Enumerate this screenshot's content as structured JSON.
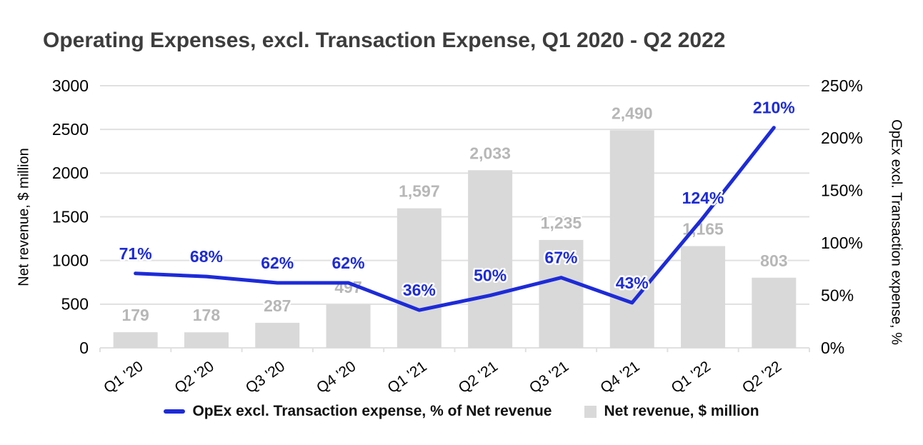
{
  "title": "Operating Expenses, excl. Transaction Expense, Q1 2020 - Q2 2022",
  "colors": {
    "bar": "#d9d9d9",
    "bar_label": "#b7b7b7",
    "line": "#1d2bd8",
    "grid": "#e0e0e0",
    "title": "#3d3d3d",
    "axis_text": "#000000"
  },
  "left_axis": {
    "title": "Net revenue, $ million",
    "ticks": [
      0,
      500,
      1000,
      1500,
      2000,
      2500,
      3000
    ]
  },
  "right_axis": {
    "title": "OpEx excl. Transaction expense, %",
    "ticks": [
      0,
      50,
      100,
      150,
      200,
      250
    ]
  },
  "legend": [
    {
      "type": "line",
      "label": "OpEx excl. Transaction expense, % of Net revenue"
    },
    {
      "type": "box",
      "label": "Net revenue, $ million"
    }
  ],
  "chart_data": {
    "type": "combo_bar_line",
    "title": "Operating Expenses, excl. Transaction Expense, Q1 2020 - Q2 2022",
    "categories": [
      "Q1 '20",
      "Q2 '20",
      "Q3 '20",
      "Q4 '20",
      "Q1 '21",
      "Q2 '21",
      "Q3 '21",
      "Q4 '21",
      "Q1 '22",
      "Q2 '22"
    ],
    "series": [
      {
        "name": "Net revenue, $ million",
        "type": "bar",
        "axis": "left",
        "values": [
          179,
          178,
          287,
          497,
          1597,
          2033,
          1235,
          2490,
          1165,
          803
        ]
      },
      {
        "name": "OpEx excl. Transaction expense, % of Net revenue",
        "type": "line",
        "axis": "right",
        "unit": "%",
        "values": [
          71,
          68,
          62,
          62,
          36,
          50,
          67,
          43,
          124,
          210
        ]
      }
    ],
    "xlabel": "",
    "ylabel_left": "Net revenue, $ million",
    "ylabel_right": "OpEx excl. Transaction expense, %",
    "ylim_left": [
      0,
      3000
    ],
    "ylim_right": [
      0,
      250
    ],
    "grid": "horizontal",
    "legend_position": "bottom"
  }
}
